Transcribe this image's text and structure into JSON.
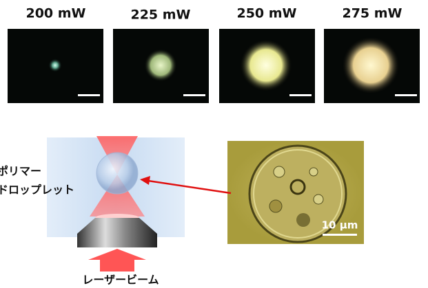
{
  "panels": [
    {
      "label": "200 mW"
    },
    {
      "label": "225 mW"
    },
    {
      "label": "250 mW"
    },
    {
      "label": "275 mW"
    }
  ],
  "droplet_label": {
    "line1": "ポリマー",
    "line2": "ドロップレット"
  },
  "beam_label": "レーザービーム",
  "scale_label": "10 μm"
}
